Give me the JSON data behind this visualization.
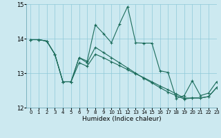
{
  "xlabel": "Humidex (Indice chaleur)",
  "xlim": [
    -0.5,
    23
  ],
  "ylim": [
    12,
    15
  ],
  "yticks": [
    12,
    13,
    14,
    15
  ],
  "xticks": [
    0,
    1,
    2,
    3,
    4,
    5,
    6,
    7,
    8,
    9,
    10,
    11,
    12,
    13,
    14,
    15,
    16,
    17,
    18,
    19,
    20,
    21,
    22,
    23
  ],
  "bg_color": "#cce9f0",
  "line_color": "#1a6b5a",
  "line1_x": [
    0,
    1,
    2,
    3,
    4,
    5,
    6,
    7,
    8,
    9,
    10,
    11,
    12,
    13,
    14,
    15,
    16,
    17,
    18,
    19,
    20,
    21,
    22,
    23
  ],
  "line1_y": [
    13.97,
    13.97,
    13.93,
    13.55,
    12.75,
    12.75,
    13.45,
    13.35,
    14.4,
    14.15,
    13.88,
    14.43,
    14.93,
    13.88,
    13.87,
    13.87,
    13.07,
    13.02,
    12.27,
    12.35,
    12.78,
    12.35,
    12.42,
    12.75
  ],
  "line2_x": [
    0,
    1,
    2,
    3,
    4,
    5,
    6,
    7,
    8,
    9,
    10,
    11,
    12,
    13,
    14,
    15,
    16,
    17,
    18,
    19,
    20,
    21,
    22,
    23
  ],
  "line2_y": [
    13.97,
    13.97,
    13.93,
    13.55,
    12.75,
    12.75,
    13.45,
    13.3,
    13.75,
    13.6,
    13.45,
    13.3,
    13.15,
    13.0,
    12.85,
    12.72,
    12.58,
    12.45,
    12.35,
    12.25,
    12.28,
    12.28,
    12.32,
    12.58
  ],
  "line3_x": [
    0,
    1,
    2,
    3,
    4,
    5,
    6,
    7,
    8,
    9,
    10,
    11,
    12,
    13,
    14,
    15,
    16,
    17,
    18,
    19,
    20,
    21,
    22,
    23
  ],
  "line3_y": [
    13.97,
    13.97,
    13.93,
    13.55,
    12.75,
    12.75,
    13.3,
    13.2,
    13.55,
    13.45,
    13.33,
    13.22,
    13.1,
    12.98,
    12.87,
    12.75,
    12.63,
    12.52,
    12.4,
    12.28,
    12.28,
    12.28,
    12.32,
    12.58
  ]
}
